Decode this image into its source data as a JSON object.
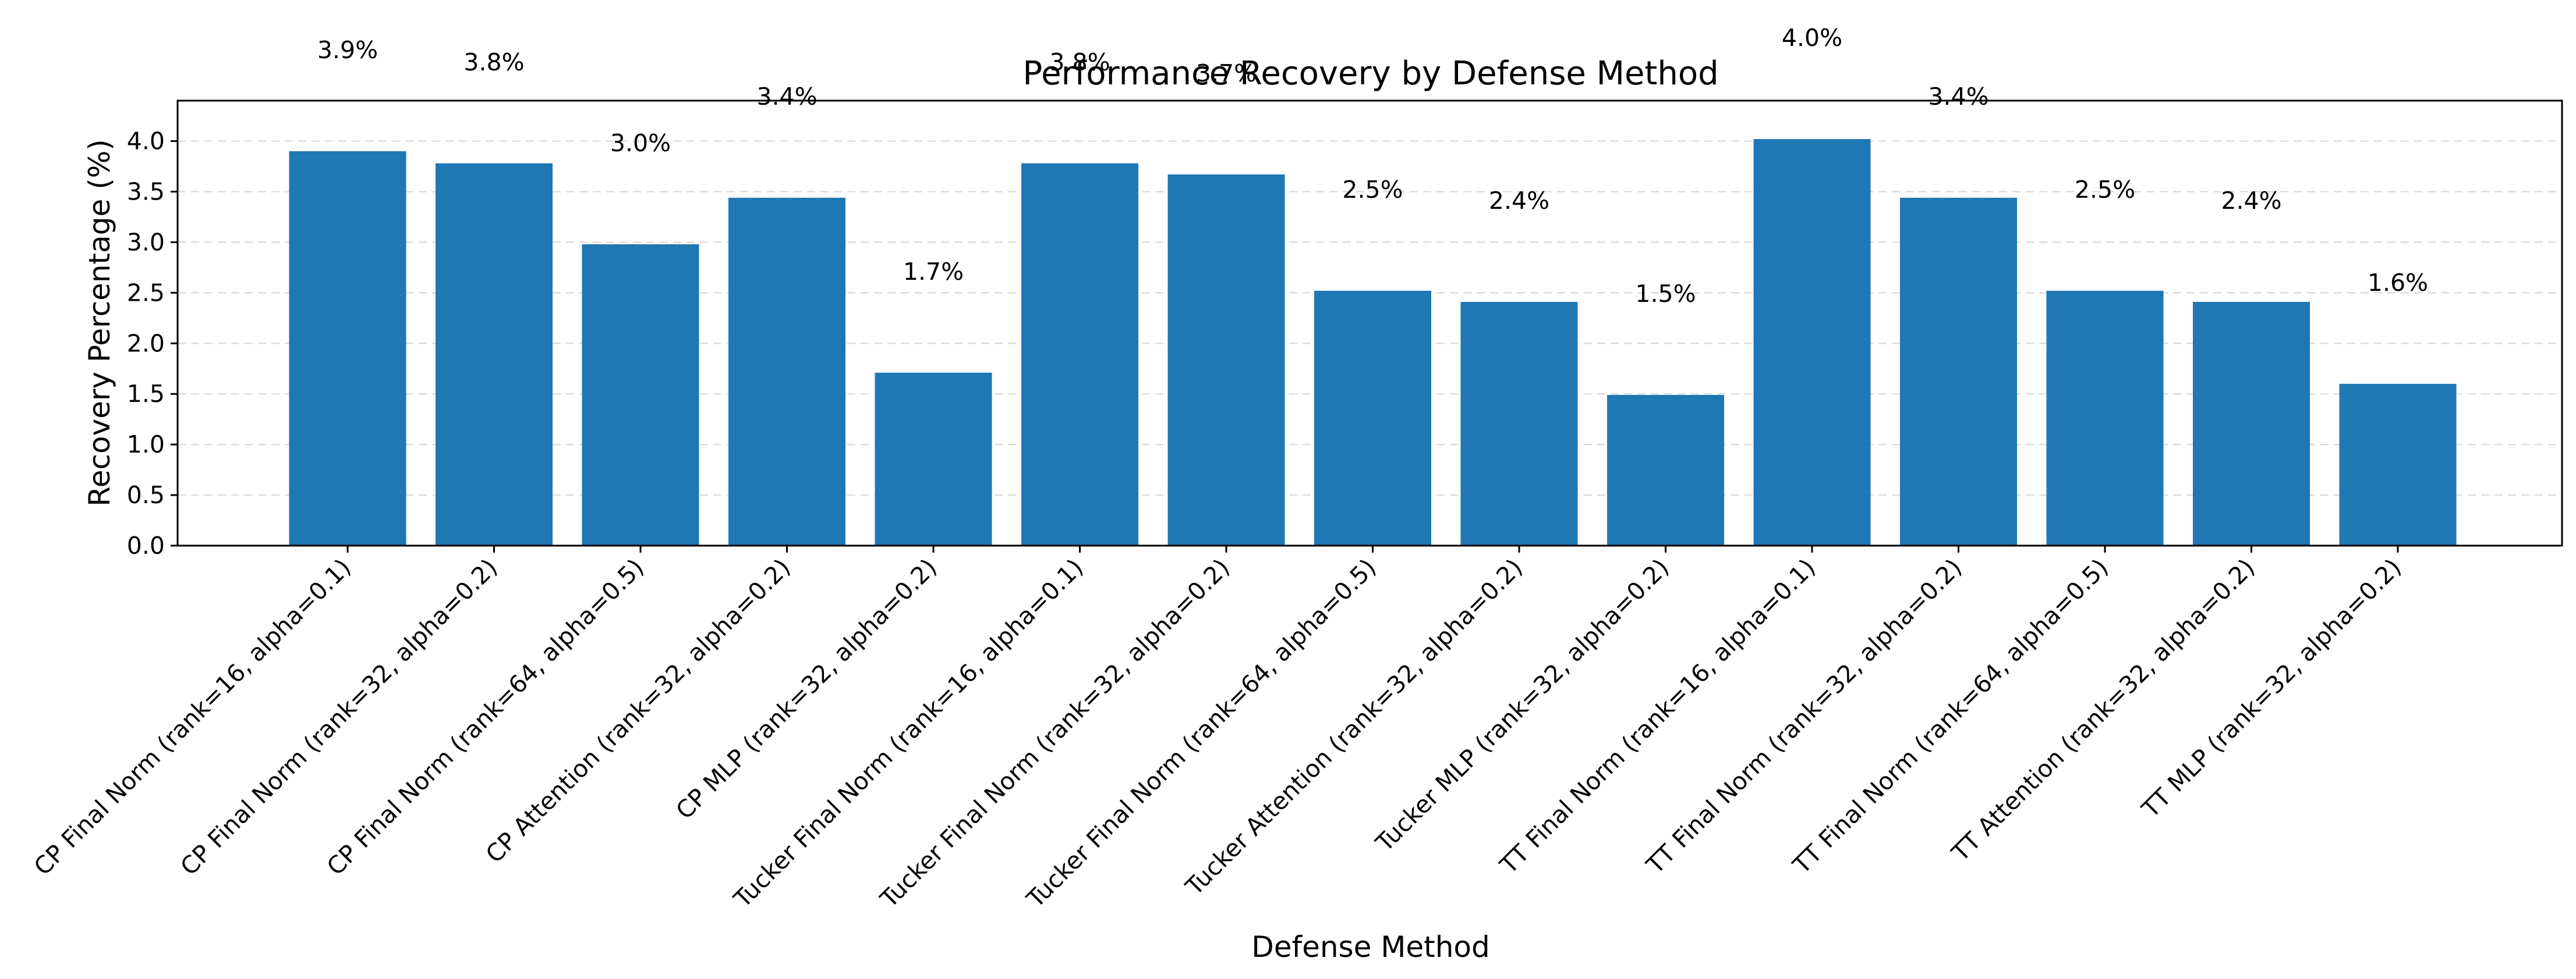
{
  "chart_data": {
    "type": "bar",
    "title": "Performance Recovery by Defense Method",
    "xlabel": "Defense Method",
    "ylabel": "Recovery Percentage (%)",
    "ylim": [
      0,
      4.4
    ],
    "yticks": [
      0.0,
      0.5,
      1.0,
      1.5,
      2.0,
      2.5,
      3.0,
      3.5,
      4.0
    ],
    "ytick_labels": [
      "0.0",
      "0.5",
      "1.0",
      "1.5",
      "2.0",
      "2.5",
      "3.0",
      "3.5",
      "4.0"
    ],
    "grid": "y, dashed",
    "bar_color": "#1f77b4",
    "categories": [
      "CP Final Norm (rank=16, alpha=0.1)",
      "CP Final Norm (rank=32, alpha=0.2)",
      "CP Final Norm (rank=64, alpha=0.5)",
      "CP Attention (rank=32, alpha=0.2)",
      "CP MLP (rank=32, alpha=0.2)",
      "Tucker Final Norm (rank=16, alpha=0.1)",
      "Tucker Final Norm (rank=32, alpha=0.2)",
      "Tucker Final Norm (rank=64, alpha=0.5)",
      "Tucker Attention (rank=32, alpha=0.2)",
      "Tucker MLP (rank=32, alpha=0.2)",
      "TT Final Norm (rank=16, alpha=0.1)",
      "TT Final Norm (rank=32, alpha=0.2)",
      "TT Final Norm (rank=64, alpha=0.5)",
      "TT Attention (rank=32, alpha=0.2)",
      "TT MLP (rank=32, alpha=0.2)"
    ],
    "values": [
      3.9,
      3.78,
      2.98,
      3.44,
      1.71,
      3.78,
      3.67,
      2.52,
      2.41,
      1.49,
      4.02,
      3.44,
      2.52,
      2.41,
      1.6
    ],
    "data_labels": [
      "3.9%",
      "3.8%",
      "3.0%",
      "3.4%",
      "1.7%",
      "3.8%",
      "3.7%",
      "2.5%",
      "2.4%",
      "1.5%",
      "4.0%",
      "3.4%",
      "2.5%",
      "2.4%",
      "1.6%"
    ]
  }
}
